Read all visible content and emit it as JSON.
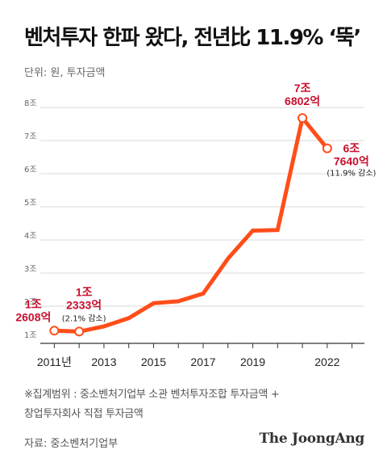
{
  "title": "벤처투자 한파 왔다, 전년比 11.9% ‘뚝’",
  "unit_label": "단위: 원, 투자금액",
  "note_line1": "※집계범위 : 중소벤처기업부 소관 벤처투자조합 투자금액 +",
  "note_line2": "창업투자회사 직접 투자금액",
  "source": "자료: 중소벤처기업부",
  "brand": "The JoongAng",
  "colors": {
    "line": "#ff4d1a",
    "annotation": "#c8102e",
    "grid": "#d9d9d9",
    "axis": "#333333"
  },
  "chart_data": {
    "type": "line",
    "title": "벤처투자 한파 왔다, 전년比 11.9% ‘뚝’",
    "ylabel": "단위: 원, 투자금액",
    "ylim": [
      1,
      8
    ],
    "yticks": [
      1,
      2,
      3,
      4,
      5,
      6,
      7,
      8
    ],
    "ytick_labels": [
      "1조",
      "2조",
      "3조",
      "4조",
      "5조",
      "6조",
      "7조",
      "8조"
    ],
    "xlim": [
      2010.5,
      2023.5
    ],
    "xtick_labels": [
      {
        "x": 2011,
        "label": "2011년"
      },
      {
        "x": 2013,
        "label": "2013"
      },
      {
        "x": 2015,
        "label": "2015"
      },
      {
        "x": 2017,
        "label": "2017"
      },
      {
        "x": 2019,
        "label": "2019"
      },
      {
        "x": 2022,
        "label": "2022"
      }
    ],
    "x": [
      2011,
      2012,
      2013,
      2014,
      2015,
      2016,
      2017,
      2018,
      2019,
      2020,
      2021,
      2022
    ],
    "values": [
      1.2608,
      1.2333,
      1.39,
      1.64,
      2.09,
      2.15,
      2.38,
      3.44,
      4.28,
      4.3,
      7.6802,
      6.764
    ],
    "annotations": [
      {
        "x": 2011,
        "lines": [
          "1조",
          "2608억"
        ]
      },
      {
        "x": 2012,
        "lines": [
          "1조",
          "2333억"
        ],
        "sub": "(2.1% 감소)"
      },
      {
        "x": 2021,
        "lines": [
          "7조",
          "6802억"
        ]
      },
      {
        "x": 2022,
        "lines": [
          "6조",
          "7640억"
        ],
        "sub": "(11.9% 감소)"
      }
    ]
  }
}
